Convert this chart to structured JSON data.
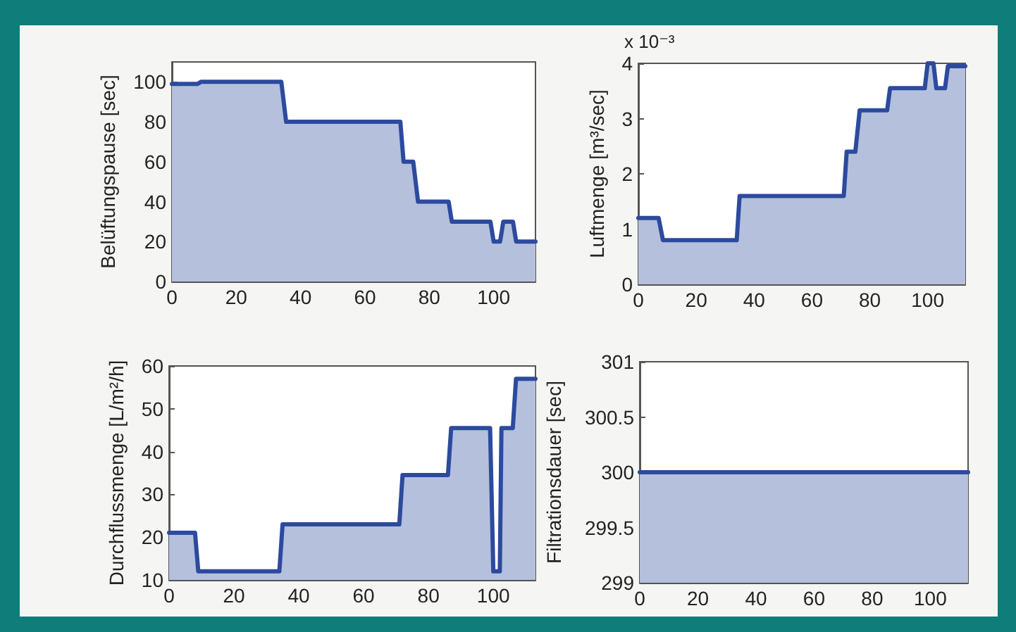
{
  "chart_data": [
    {
      "type": "area",
      "ylabel": "Belüftungspause [sec]",
      "xlim": [
        0,
        113
      ],
      "xticks": [
        0,
        20,
        40,
        60,
        80,
        100
      ],
      "ylim": [
        0,
        110
      ],
      "yticks": [
        0,
        20,
        40,
        60,
        80,
        100
      ],
      "grid": false,
      "marker": "none",
      "line_style": "solid",
      "series": [
        {
          "color": "#2c4a9e",
          "x": [
            0,
            8,
            9,
            34,
            35.5,
            71,
            72,
            75,
            76.5,
            86,
            87,
            99,
            100,
            102,
            103,
            106,
            107,
            113
          ],
          "values": [
            99,
            99,
            100,
            100,
            80,
            80,
            60,
            60,
            40,
            40,
            30,
            30,
            20,
            20,
            30,
            30,
            20,
            20
          ]
        }
      ]
    },
    {
      "type": "area",
      "ylabel": "Luftmenge [m³/sec]",
      "annotations": [
        "x 10⁻³"
      ],
      "xlim": [
        0,
        113
      ],
      "xticks": [
        0,
        20,
        40,
        60,
        80,
        100
      ],
      "ylim": [
        0,
        4
      ],
      "yticks": [
        0,
        1,
        2,
        3,
        4
      ],
      "grid": false,
      "marker": "none",
      "line_style": "solid",
      "series": [
        {
          "color": "#2c4a9e",
          "x": [
            0,
            7,
            8.5,
            34,
            35,
            71,
            72,
            75,
            76.5,
            86,
            87,
            99,
            100,
            102,
            103,
            106,
            107,
            113
          ],
          "values": [
            1.2,
            1.2,
            0.8,
            0.8,
            1.6,
            1.6,
            2.4,
            2.4,
            3.15,
            3.15,
            3.55,
            3.55,
            4,
            4,
            3.55,
            3.55,
            3.95,
            3.95
          ]
        }
      ]
    },
    {
      "type": "area",
      "ylabel": "Durchflussmenge [L/m²/h]",
      "xlim": [
        0,
        113
      ],
      "xticks": [
        0,
        20,
        40,
        60,
        80,
        100
      ],
      "ylim": [
        10,
        60
      ],
      "yticks": [
        10,
        20,
        30,
        40,
        50,
        60
      ],
      "grid": false,
      "marker": "none",
      "line_style": "solid",
      "series": [
        {
          "color": "#2c4a9e",
          "x": [
            0,
            8,
            9,
            34,
            35,
            71,
            72,
            86,
            87,
            99,
            100,
            102,
            102.5,
            106,
            107,
            113
          ],
          "values": [
            21,
            21,
            12,
            12,
            23,
            23,
            34.5,
            34.5,
            45.5,
            45.5,
            12,
            12,
            45.5,
            45.5,
            57,
            57
          ]
        }
      ]
    },
    {
      "type": "area",
      "ylabel": "Filtrationsdauer [sec]",
      "xlim": [
        0,
        113
      ],
      "xticks": [
        0,
        20,
        40,
        60,
        80,
        100
      ],
      "ylim": [
        299,
        301
      ],
      "yticks": [
        299,
        299.5,
        300,
        300.5,
        301
      ],
      "grid": false,
      "marker": "none",
      "line_style": "solid",
      "series": [
        {
          "color": "#2c4a9e",
          "x": [
            0,
            113
          ],
          "values": [
            300,
            300
          ]
        }
      ]
    }
  ]
}
